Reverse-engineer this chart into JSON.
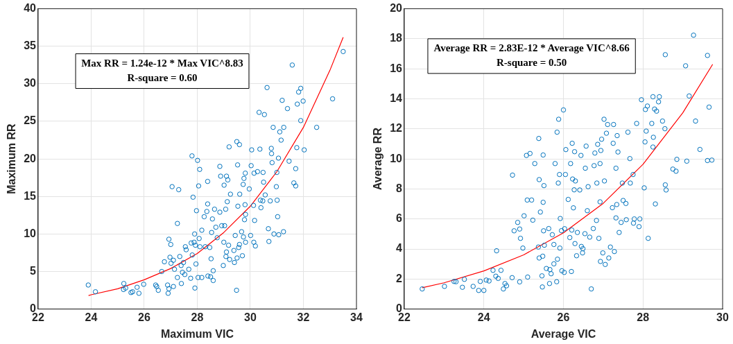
{
  "chart_data": [
    {
      "type": "scatter",
      "xlabel": "Maximum VIC",
      "ylabel": "Maximum RR",
      "annotations": [
        "Max RR = 1.24e-12 * Max VIC^8.83",
        "R-square = 0.60"
      ],
      "xlim": [
        22,
        34
      ],
      "ylim": [
        0,
        40
      ],
      "xticks": [
        22,
        24,
        26,
        28,
        30,
        32,
        34
      ],
      "yticks": [
        0,
        5,
        10,
        15,
        20,
        25,
        30,
        35,
        40
      ],
      "grid": true,
      "marker": "circle",
      "series": [
        {
          "color": "#0072bd",
          "x": [
            23.89,
            24.16,
            25.23,
            25.22,
            25.3,
            25.5,
            25.56,
            25.73,
            25.8,
            25.98,
            26.43,
            26.47,
            26.53,
            26.66,
            26.76,
            26.88,
            26.9,
            26.93,
            26.93,
            26.97,
            27.0,
            27.01,
            27.05,
            27.1,
            27.1,
            27.14,
            27.25,
            27.25,
            27.3,
            27.34,
            27.39,
            27.4,
            27.44,
            27.48,
            27.53,
            27.55,
            27.58,
            27.68,
            27.75,
            27.77,
            27.8,
            27.81,
            27.84,
            27.88,
            27.9,
            27.91,
            27.93,
            27.95,
            27.97,
            28.01,
            28.03,
            28.05,
            28.07,
            28.09,
            28.1,
            28.17,
            28.17,
            28.26,
            28.3,
            28.36,
            28.39,
            28.39,
            28.4,
            28.47,
            28.5,
            28.52,
            28.54,
            28.57,
            28.6,
            28.6,
            28.65,
            28.7,
            28.75,
            28.85,
            28.85,
            28.88,
            28.92,
            28.98,
            29.0,
            29.01,
            29.03,
            29.07,
            29.08,
            29.1,
            29.1,
            29.13,
            29.15,
            29.18,
            29.2,
            29.22,
            29.25,
            29.38,
            29.4,
            29.43,
            29.48,
            29.49,
            29.5,
            29.52,
            29.53,
            29.56,
            29.59,
            29.59,
            29.6,
            29.67,
            29.7,
            29.73,
            29.74,
            29.76,
            29.78,
            29.8,
            29.81,
            29.82,
            29.82,
            29.96,
            30.01,
            30.03,
            30.05,
            30.12,
            30.13,
            30.14,
            30.16,
            30.19,
            30.27,
            30.33,
            30.36,
            30.38,
            30.4,
            30.47,
            30.48,
            30.5,
            30.53,
            30.56,
            30.63,
            30.68,
            30.7,
            30.75,
            30.79,
            30.8,
            30.82,
            30.86,
            30.89,
            30.98,
            31.0,
            31.01,
            31.03,
            31.06,
            31.07,
            31.11,
            31.16,
            31.2,
            31.25,
            31.26,
            31.4,
            31.46,
            31.58,
            31.64,
            31.71,
            31.71,
            31.75,
            31.77,
            31.82,
            31.9,
            31.9,
            31.99,
            32.03,
            32.5,
            33.1,
            33.5
          ],
          "values": [
            3.2,
            2.3,
            3.4,
            2.6,
            2.8,
            2.2,
            2.3,
            2.9,
            2.1,
            3.3,
            3.2,
            3.0,
            2.5,
            5.0,
            6.3,
            3.2,
            2.1,
            2.7,
            9.3,
            6.9,
            8.6,
            6.1,
            16.3,
            6.5,
            3.0,
            5.3,
            11.4,
            4.2,
            15.9,
            7.0,
            5.8,
            3.4,
            4.9,
            6.2,
            4.6,
            8.3,
            7.9,
            5.3,
            4.1,
            8.8,
            20.4,
            7.2,
            14.9,
            8.9,
            10.0,
            2.8,
            8.5,
            6.0,
            13.1,
            19.8,
            4.2,
            16.4,
            9.4,
            18.6,
            8.3,
            4.2,
            10.5,
            12.3,
            8.3,
            13.0,
            17.0,
            14.0,
            4.4,
            8.2,
            4.3,
            6.7,
            10.2,
            12.0,
            3.8,
            5.1,
            13.3,
            10.9,
            9.5,
            19.0,
            12.9,
            17.7,
            11.1,
            5.8,
            8.9,
            16.5,
            11.1,
            13.3,
            7.0,
            7.6,
            17.7,
            14.3,
            17.2,
            8.5,
            21.6,
            6.6,
            15.3,
            7.8,
            6.2,
            9.8,
            2.5,
            22.3,
            6.8,
            19.2,
            13.7,
            8.2,
            21.9,
            8.6,
            15.3,
            10.3,
            7.1,
            16.6,
            9.6,
            17.4,
            11.9,
            13.9,
            18.1,
            8.9,
            12.6,
            16.0,
            9.8,
            19.1,
            21.2,
            13.8,
            8.9,
            18.1,
            11.8,
            8.4,
            18.3,
            26.2,
            21.3,
            14.5,
            13.5,
            14.4,
            18.2,
            16.9,
            25.9,
            15.2,
            29.5,
            10.7,
            9.0,
            14.4,
            21.4,
            20.7,
            19.5,
            24.2,
            10.0,
            16.3,
            18.2,
            14.5,
            12.3,
            20.1,
            9.9,
            23.6,
            22.5,
            27.8,
            10.3,
            24.2,
            26.7,
            19.7,
            32.5,
            16.8,
            18.7,
            16.4,
            21.5,
            27.3,
            28.9,
            29.4,
            25.1,
            27.7,
            21.2,
            24.2,
            28.0,
            34.3
          ]
        },
        {
          "type": "line",
          "color": "#ff0000",
          "marker": "none",
          "x": [
            23.9,
            24,
            25,
            26,
            27,
            28,
            29,
            30,
            31,
            32,
            33,
            33.5
          ],
          "values": [
            1.8,
            1.9,
            2.7,
            3.9,
            5.4,
            7.4,
            10.2,
            13.7,
            18.3,
            24.2,
            31.8,
            36.2
          ]
        }
      ]
    },
    {
      "type": "scatter",
      "xlabel": "Average VIC",
      "ylabel": "Average RR",
      "annotations": [
        "Average RR = 2.83E-12 * Average VIC^8.66",
        "R-square = 0.50"
      ],
      "xlim": [
        22,
        30
      ],
      "ylim": [
        0,
        20
      ],
      "xticks": [
        22,
        24,
        26,
        28,
        30
      ],
      "yticks": [
        0,
        2,
        4,
        6,
        8,
        10,
        12,
        14,
        16,
        18,
        20
      ],
      "grid": true,
      "marker": "circle",
      "series": [
        {
          "color": "#0072bd",
          "x": [
            22.45,
            23.01,
            23.25,
            23.3,
            23.46,
            23.51,
            23.73,
            23.87,
            23.91,
            24.0,
            24.06,
            24.13,
            24.23,
            24.3,
            24.32,
            24.36,
            24.43,
            24.49,
            24.53,
            24.57,
            24.71,
            24.72,
            24.76,
            24.85,
            24.9,
            24.9,
            24.92,
            24.98,
            25.01,
            25.07,
            25.09,
            25.1,
            25.16,
            25.2,
            25.23,
            25.28,
            25.37,
            25.38,
            25.39,
            25.39,
            25.42,
            25.46,
            25.47,
            25.48,
            25.49,
            25.49,
            25.5,
            25.51,
            25.52,
            25.57,
            25.63,
            25.65,
            25.66,
            25.69,
            25.72,
            25.76,
            25.76,
            25.79,
            25.83,
            25.84,
            25.85,
            25.87,
            25.88,
            25.9,
            25.91,
            25.92,
            25.95,
            25.96,
            26.0,
            26.02,
            26.03,
            26.05,
            26.06,
            26.12,
            26.16,
            26.18,
            26.2,
            26.21,
            26.22,
            26.23,
            26.25,
            26.27,
            26.28,
            26.29,
            26.3,
            26.33,
            26.35,
            26.41,
            26.44,
            26.45,
            26.48,
            26.49,
            26.54,
            26.55,
            26.57,
            26.6,
            26.62,
            26.66,
            26.7,
            26.75,
            26.77,
            26.79,
            26.83,
            26.84,
            26.86,
            26.89,
            26.92,
            26.92,
            26.93,
            26.94,
            26.96,
            26.99,
            27.02,
            27.03,
            27.05,
            27.08,
            27.11,
            27.14,
            27.18,
            27.23,
            27.25,
            27.26,
            27.28,
            27.32,
            27.32,
            27.34,
            27.35,
            27.37,
            27.4,
            27.45,
            27.48,
            27.5,
            27.57,
            27.58,
            27.62,
            27.67,
            27.68,
            27.75,
            27.76,
            27.78,
            27.84,
            27.9,
            27.92,
            27.96,
            28.03,
            28.05,
            28.06,
            28.08,
            28.11,
            28.13,
            28.22,
            28.25,
            28.25,
            28.26,
            28.29,
            28.31,
            28.34,
            28.39,
            28.41,
            28.49,
            28.55,
            28.56,
            28.56,
            28.58,
            28.75,
            28.83,
            28.85,
            29.07,
            29.1,
            29.16,
            29.27,
            29.32,
            29.43,
            29.62,
            29.62,
            29.66,
            29.73
          ],
          "values": [
            1.34,
            1.51,
            1.84,
            1.82,
            1.45,
            1.98,
            1.51,
            1.24,
            1.84,
            1.24,
            1.93,
            1.87,
            2.58,
            2.19,
            3.88,
            2.04,
            2.58,
            1.34,
            1.7,
            1.55,
            2.09,
            8.92,
            5.21,
            5.77,
            1.81,
            5.33,
            4.71,
            4.06,
            6.21,
            10.23,
            7.26,
            2.13,
            10.36,
            7.26,
            5.92,
            9.69,
            4.13,
            11.36,
            3.4,
            8.62,
            6.46,
            2.21,
            1.47,
            3.52,
            7.11,
            10.26,
            5.21,
            8.22,
            4.25,
            2.7,
            5.36,
            1.7,
            2.63,
            2.35,
            4.95,
            3.01,
            4.3,
            9.69,
            1.82,
            11.78,
            3.32,
            8.39,
            12.64,
            8.96,
            4.06,
            6.03,
            5.22,
            2.55,
            13.26,
            2.44,
            5.35,
            8.96,
            10.62,
            7.3,
            4.76,
            9.69,
            2.5,
            5.26,
            11.04,
            8.66,
            6.74,
            7.94,
            10.48,
            4.36,
            8.53,
            3.55,
            5.1,
            7.93,
            10.23,
            4.17,
            3.74,
            4.02,
            5.02,
            9.38,
            10.85,
            6.55,
            8.15,
            4.79,
            1.34,
            5.36,
            9.55,
            10.39,
            5.9,
            8.39,
            10.97,
            4.71,
            7.14,
            9.69,
            3.17,
            10.56,
            11.31,
            3.74,
            12.64,
            8.53,
            2.97,
            11.71,
            12.29,
            3.4,
            4.13,
            6.75,
            11.04,
            12.29,
            3.83,
            9.38,
            6.07,
            6.96,
            11.55,
            10.46,
            5.1,
            5.77,
            8.39,
            7.23,
            7.03,
            5.95,
            11.78,
            10.02,
            8.39,
            8.96,
            5.72,
            6.0,
            12.36,
            5.49,
            6.0,
            13.94,
            8.07,
            11.13,
            13.29,
            11.85,
            13.52,
            4.71,
            12.36,
            10.79,
            14.14,
            11.44,
            13.32,
            7.0,
            13.18,
            13.8,
            14.14,
            12.52,
            12.01,
            8.27,
            16.94,
            7.93,
            9.32,
            9.18,
            9.97,
            16.2,
            9.85,
            14.19,
            18.24,
            12.52,
            10.63,
            9.89,
            16.89,
            13.45,
            9.92
          ]
        },
        {
          "type": "line",
          "color": "#ff0000",
          "marker": "none",
          "x": [
            22.45,
            23,
            24,
            25,
            26,
            27,
            28,
            29,
            29.75
          ],
          "values": [
            1.42,
            1.75,
            2.54,
            3.61,
            5.07,
            7.04,
            9.64,
            13.07,
            16.3
          ]
        }
      ]
    }
  ]
}
